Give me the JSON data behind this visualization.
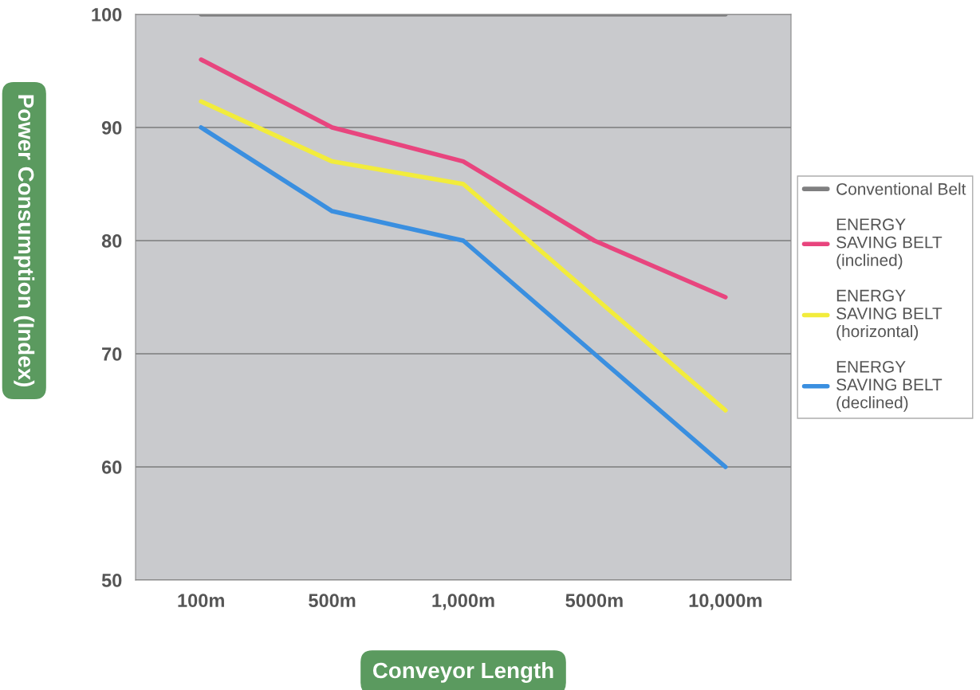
{
  "chart_data": {
    "type": "line",
    "xlabel": "Conveyor Length",
    "ylabel": "Power Consumption (Index)",
    "categories": [
      "100m",
      "500m",
      "1,000m",
      "5000m",
      "10,000m"
    ],
    "series": [
      {
        "name": "Conventional Belt",
        "color": "#7f7f80",
        "values": [
          100,
          100,
          100,
          100,
          100
        ]
      },
      {
        "name": "ENERGY\nSAVING BELT\n(inclined)",
        "color": "#e8457e",
        "values": [
          96,
          90,
          87,
          80,
          75
        ]
      },
      {
        "name": "ENERGY\nSAVING BELT\n(horizontal)",
        "color": "#f2ec3c",
        "values": [
          92.3,
          87,
          85,
          75,
          65
        ]
      },
      {
        "name": "ENERGY\nSAVING BELT\n(declined)",
        "color": "#3a8fe0",
        "values": [
          90,
          82.6,
          80,
          70,
          60
        ]
      }
    ],
    "ylim": [
      50,
      100
    ],
    "yticks": [
      50,
      60,
      70,
      80,
      90,
      100
    ],
    "grid": "y",
    "legend": "right",
    "marker": "none",
    "line_style": "solid"
  }
}
